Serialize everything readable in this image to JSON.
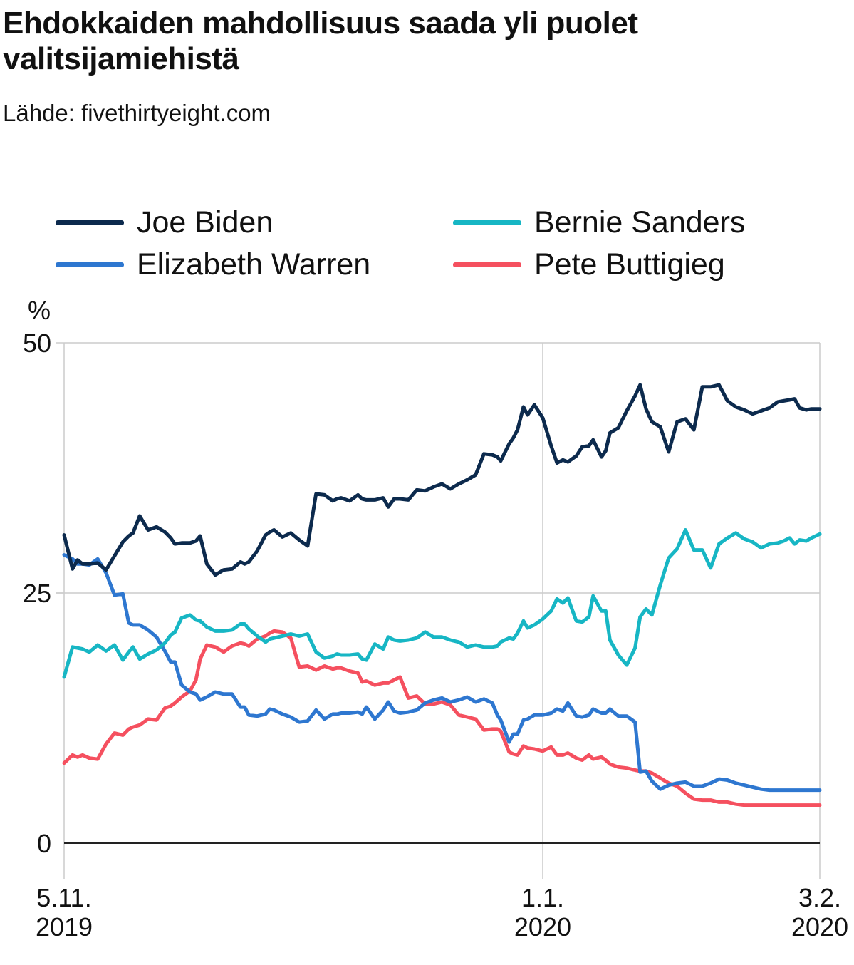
{
  "title": "Ehdokkaiden mahdollisuus saada yli puolet valitsijamiehistä",
  "source": "Lähde: fivethirtyeight.com",
  "chart_data": {
    "type": "line",
    "title": "Ehdokkaiden mahdollisuus saada yli puolet valitsijamiehistä",
    "ylabel": "%",
    "xlabel": "",
    "ylim": [
      0,
      50
    ],
    "yticks": [
      "0",
      "25",
      "50"
    ],
    "xtick_labels": [
      {
        "day": 0,
        "line1": "5.11.",
        "line2": "2019"
      },
      {
        "day": 57,
        "line1": "1.1.",
        "line2": "2020"
      },
      {
        "day": 90,
        "line1": "3.2.",
        "line2": "2020"
      }
    ],
    "grid": true,
    "legend": "top, two columns",
    "x_unit": "days since 5.11.2019",
    "x": [
      0,
      1,
      1.6,
      2.2,
      3,
      4,
      5,
      6,
      7,
      7.7,
      8.2,
      9,
      10,
      11,
      12,
      12.7,
      13.2,
      14,
      15,
      15.7,
      16.2,
      17,
      18,
      19,
      20,
      21,
      21.5,
      22,
      23,
      24,
      24.5,
      25,
      26,
      27,
      28,
      29,
      30,
      31,
      32,
      32.5,
      33,
      34,
      35,
      35.5,
      36,
      37,
      38,
      38.6,
      39.3,
      40,
      41,
      42,
      43,
      44,
      45,
      46,
      47,
      48,
      49,
      50,
      51,
      51.6,
      52,
      53,
      53.5,
      54,
      54.7,
      55.2,
      56,
      57,
      58,
      58.7,
      59.4,
      60,
      61,
      61.7,
      62.5,
      63,
      64,
      64.5,
      65,
      66,
      67,
      68,
      68.6,
      69.3,
      70,
      71,
      72,
      73,
      74,
      75,
      76,
      77,
      78,
      79,
      80,
      81,
      82,
      83,
      84,
      85,
      85.7,
      86.4,
      87,
      87.6,
      88.4,
      89,
      90
    ],
    "series": [
      {
        "name": "Joe Biden",
        "color": "#0c2a4d",
        "values": [
          30.8,
          27.4,
          28.3,
          27.9,
          27.9,
          28.0,
          27.3,
          28.7,
          30.1,
          30.7,
          31.0,
          32.7,
          31.3,
          31.6,
          31.1,
          30.5,
          29.9,
          30.0,
          30.0,
          30.2,
          30.7,
          27.9,
          26.8,
          27.3,
          27.4,
          28.1,
          27.9,
          28.1,
          29.2,
          30.8,
          31.1,
          31.3,
          30.6,
          31.0,
          30.3,
          29.7,
          34.9,
          34.8,
          34.2,
          34.4,
          34.5,
          34.2,
          34.8,
          34.4,
          34.3,
          34.3,
          34.5,
          33.6,
          34.4,
          34.4,
          34.3,
          35.3,
          35.2,
          35.6,
          35.9,
          35.4,
          35.9,
          36.3,
          36.8,
          38.9,
          38.8,
          38.6,
          38.2,
          39.9,
          40.5,
          41.3,
          43.6,
          42.8,
          43.8,
          42.5,
          39.7,
          38.0,
          38.3,
          38.1,
          38.7,
          39.6,
          39.7,
          40.3,
          38.6,
          39.2,
          41.0,
          41.5,
          43.2,
          44.7,
          45.8,
          43.4,
          42.1,
          41.6,
          39.1,
          42.1,
          42.4,
          41.3,
          45.6,
          45.6,
          45.8,
          44.2,
          43.6,
          43.3,
          42.9,
          43.2,
          43.5,
          44.1,
          44.2,
          44.3,
          44.4,
          43.5,
          43.3,
          43.4,
          43.4
        ]
      },
      {
        "name": "Bernie Sanders",
        "color": "#17b6c4",
        "values": [
          16.6,
          19.6,
          19.5,
          19.4,
          19.1,
          19.8,
          19.2,
          19.8,
          18.3,
          19.1,
          19.6,
          18.4,
          18.9,
          19.3,
          20.0,
          20.8,
          21.1,
          22.5,
          22.8,
          22.3,
          22.2,
          21.6,
          21.2,
          21.2,
          21.3,
          21.9,
          21.9,
          21.4,
          20.7,
          20.1,
          20.4,
          20.5,
          20.7,
          20.9,
          20.7,
          20.9,
          19.1,
          18.5,
          18.7,
          18.9,
          18.8,
          18.8,
          18.9,
          18.4,
          18.3,
          19.9,
          19.4,
          20.6,
          20.3,
          20.2,
          20.3,
          20.5,
          21.1,
          20.6,
          20.6,
          20.3,
          20.1,
          19.6,
          19.8,
          19.6,
          19.6,
          19.7,
          20.1,
          20.5,
          20.4,
          21.0,
          22.2,
          21.5,
          21.8,
          22.4,
          23.2,
          24.4,
          24.0,
          24.5,
          22.2,
          22.1,
          22.6,
          24.7,
          23.2,
          23.2,
          20.3,
          18.8,
          17.8,
          19.5,
          22.6,
          23.4,
          22.8,
          25.8,
          28.5,
          29.4,
          31.3,
          29.3,
          29.3,
          27.5,
          29.9,
          30.5,
          31.0,
          30.4,
          30.1,
          29.5,
          29.9,
          30.0,
          30.2,
          30.5,
          29.9,
          30.3,
          30.2,
          30.5,
          30.9
        ]
      },
      {
        "name": "Elizabeth Warren",
        "color": "#2e77d0",
        "values": [
          28.8,
          28.4,
          27.9,
          27.9,
          27.8,
          28.4,
          27.0,
          24.8,
          24.9,
          22.0,
          21.8,
          21.8,
          21.3,
          20.6,
          19.2,
          18.1,
          18.1,
          15.8,
          15.1,
          14.9,
          14.3,
          14.6,
          15.1,
          14.9,
          14.9,
          13.6,
          13.6,
          12.8,
          12.7,
          12.9,
          13.4,
          13.3,
          12.9,
          12.6,
          12.1,
          12.2,
          13.3,
          12.4,
          12.9,
          12.9,
          13.0,
          13.0,
          13.1,
          12.9,
          13.6,
          12.4,
          13.3,
          14.1,
          13.2,
          13.0,
          13.1,
          13.3,
          14.0,
          14.3,
          14.5,
          14.1,
          14.3,
          14.6,
          14.1,
          14.4,
          14.0,
          12.8,
          12.3,
          10.1,
          10.9,
          10.9,
          12.3,
          12.4,
          12.8,
          12.8,
          13.0,
          13.4,
          13.2,
          14.0,
          12.7,
          12.6,
          12.8,
          13.4,
          13.0,
          13.0,
          13.4,
          12.7,
          12.7,
          12.1,
          7.1,
          7.2,
          6.2,
          5.4,
          5.8,
          6.0,
          6.1,
          5.7,
          5.7,
          6.0,
          6.4,
          6.3,
          6.0,
          5.8,
          5.6,
          5.4,
          5.3,
          5.3,
          5.3,
          5.3,
          5.3,
          5.3,
          5.3,
          5.3,
          5.3
        ]
      },
      {
        "name": "Pete Buttigieg",
        "color": "#f5505f",
        "values": [
          8.0,
          8.8,
          8.6,
          8.8,
          8.5,
          8.4,
          9.9,
          11.0,
          10.8,
          11.4,
          11.6,
          11.8,
          12.4,
          12.3,
          13.5,
          13.7,
          14.0,
          14.6,
          15.2,
          16.3,
          18.4,
          19.8,
          19.6,
          19.1,
          19.7,
          20.0,
          19.9,
          19.7,
          20.4,
          20.7,
          21.0,
          21.2,
          21.1,
          20.5,
          17.6,
          17.7,
          17.3,
          17.7,
          17.4,
          17.5,
          17.5,
          17.2,
          17.0,
          16.1,
          16.2,
          15.8,
          16.0,
          16.0,
          16.3,
          16.6,
          14.5,
          14.7,
          13.9,
          13.9,
          14.1,
          13.8,
          12.8,
          12.6,
          12.4,
          11.3,
          11.4,
          11.4,
          11.2,
          9.1,
          8.9,
          8.8,
          9.7,
          9.5,
          9.4,
          9.2,
          9.6,
          8.8,
          8.8,
          9.0,
          8.5,
          8.3,
          8.8,
          8.4,
          8.6,
          8.3,
          7.9,
          7.6,
          7.5,
          7.3,
          7.2,
          7.2,
          7.0,
          6.5,
          6.0,
          5.7,
          5.0,
          4.4,
          4.3,
          4.3,
          4.1,
          4.1,
          3.9,
          3.8,
          3.8,
          3.8,
          3.8,
          3.8,
          3.8,
          3.8,
          3.8,
          3.8,
          3.8,
          3.8,
          3.8
        ]
      }
    ]
  }
}
